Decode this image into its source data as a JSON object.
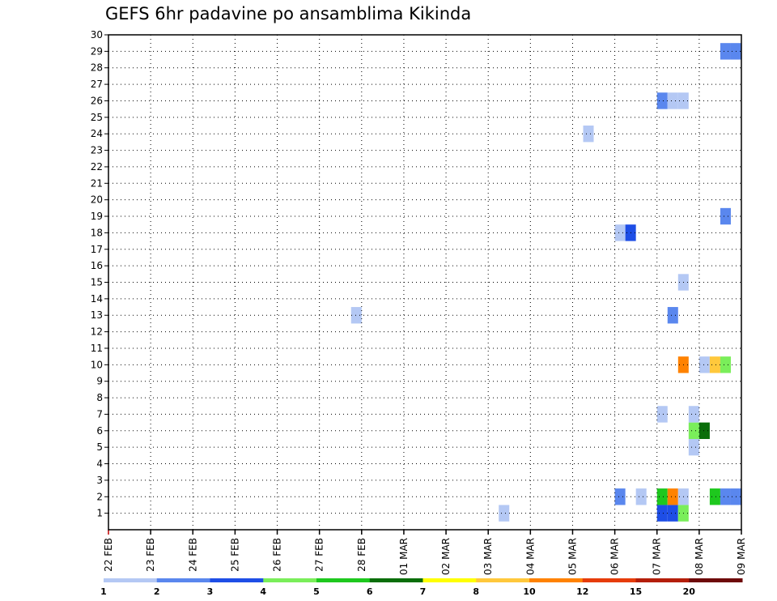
{
  "chart_data": {
    "type": "heatmap",
    "title": "GEFS 6hr padavine po ansamblima Kikinda",
    "xlabel": "",
    "ylabel": "",
    "x_ticks": [
      "22 FEB",
      "23 FEB",
      "24 FEB",
      "25 FEB",
      "26 FEB",
      "27 FEB",
      "28 FEB",
      "01 MAR",
      "02 MAR",
      "03 MAR",
      "04 MAR",
      "05 MAR",
      "06 MAR",
      "07 MAR",
      "08 MAR",
      "09 MAR"
    ],
    "y_ticks": [
      1,
      2,
      3,
      4,
      5,
      6,
      7,
      8,
      9,
      10,
      11,
      12,
      13,
      14,
      15,
      16,
      17,
      18,
      19,
      20,
      21,
      22,
      23,
      24,
      25,
      26,
      27,
      28,
      29,
      30
    ],
    "xlim": [
      "22 FEB",
      "09 MAR"
    ],
    "ylim": [
      0,
      30
    ],
    "grid": true,
    "colorbar": {
      "levels": [
        1,
        2,
        3,
        4,
        5,
        6,
        7,
        8,
        10,
        12,
        15,
        20
      ],
      "labels": [
        "1",
        "2",
        "3",
        "4",
        "5",
        "6",
        "7",
        "8",
        "10",
        "12",
        "15",
        "20"
      ],
      "colors": [
        "#b4c8f4",
        "#5a87ee",
        "#1e4ee6",
        "#7aee5a",
        "#1ec81e",
        "#0a6e0a",
        "#ffff00",
        "#ffc83c",
        "#ff8200",
        "#e63c0a",
        "#b41e0a",
        "#6e0a0a"
      ]
    },
    "cells": [
      {
        "member": 1,
        "time": "03 MAR 06Z",
        "value": 1.5
      },
      {
        "member": 1,
        "time": "07 MAR 00Z",
        "value": 3.5
      },
      {
        "member": 1,
        "time": "07 MAR 06Z",
        "value": 3.5
      },
      {
        "member": 1,
        "time": "07 MAR 12Z",
        "value": 4.5
      },
      {
        "member": 2,
        "time": "06 MAR 00Z",
        "value": 2.5
      },
      {
        "member": 2,
        "time": "06 MAR 12Z",
        "value": 1.5
      },
      {
        "member": 2,
        "time": "07 MAR 00Z",
        "value": 5.5
      },
      {
        "member": 2,
        "time": "07 MAR 06Z",
        "value": 11
      },
      {
        "member": 2,
        "time": "07 MAR 12Z",
        "value": 1.5
      },
      {
        "member": 2,
        "time": "08 MAR 06Z",
        "value": 5.5
      },
      {
        "member": 2,
        "time": "08 MAR 12Z",
        "value": 2.5
      },
      {
        "member": 2,
        "time": "08 MAR 18Z",
        "value": 2.5
      },
      {
        "member": 6,
        "time": "07 MAR 18Z",
        "value": 4.5
      },
      {
        "member": 6,
        "time": "08 MAR 00Z",
        "value": 6.5
      },
      {
        "member": 5,
        "time": "07 MAR 18Z",
        "value": 1.5
      },
      {
        "member": 7,
        "time": "07 MAR 00Z",
        "value": 1.5
      },
      {
        "member": 7,
        "time": "07 MAR 18Z",
        "value": 1.5
      },
      {
        "member": 10,
        "time": "07 MAR 12Z",
        "value": 11
      },
      {
        "member": 10,
        "time": "08 MAR 00Z",
        "value": 1.5
      },
      {
        "member": 10,
        "time": "08 MAR 06Z",
        "value": 9
      },
      {
        "member": 10,
        "time": "08 MAR 12Z",
        "value": 4.5
      },
      {
        "member": 13,
        "time": "07 MAR 06Z",
        "value": 2.5
      },
      {
        "member": 13,
        "time": "27 FEB 18Z",
        "value": 1.5
      },
      {
        "member": 15,
        "time": "07 MAR 12Z",
        "value": 1.5
      },
      {
        "member": 18,
        "time": "06 MAR 00Z",
        "value": 1.5
      },
      {
        "member": 18,
        "time": "06 MAR 06Z",
        "value": 3.5
      },
      {
        "member": 19,
        "time": "08 MAR 12Z",
        "value": 2.5
      },
      {
        "member": 24,
        "time": "05 MAR 06Z",
        "value": 1.5
      },
      {
        "member": 26,
        "time": "07 MAR 00Z",
        "value": 2.5
      },
      {
        "member": 26,
        "time": "07 MAR 06Z",
        "value": 1.5
      },
      {
        "member": 26,
        "time": "07 MAR 12Z",
        "value": 1.5
      },
      {
        "member": 29,
        "time": "08 MAR 12Z",
        "value": 2.5
      },
      {
        "member": 29,
        "time": "08 MAR 18Z",
        "value": 2.5
      }
    ]
  }
}
